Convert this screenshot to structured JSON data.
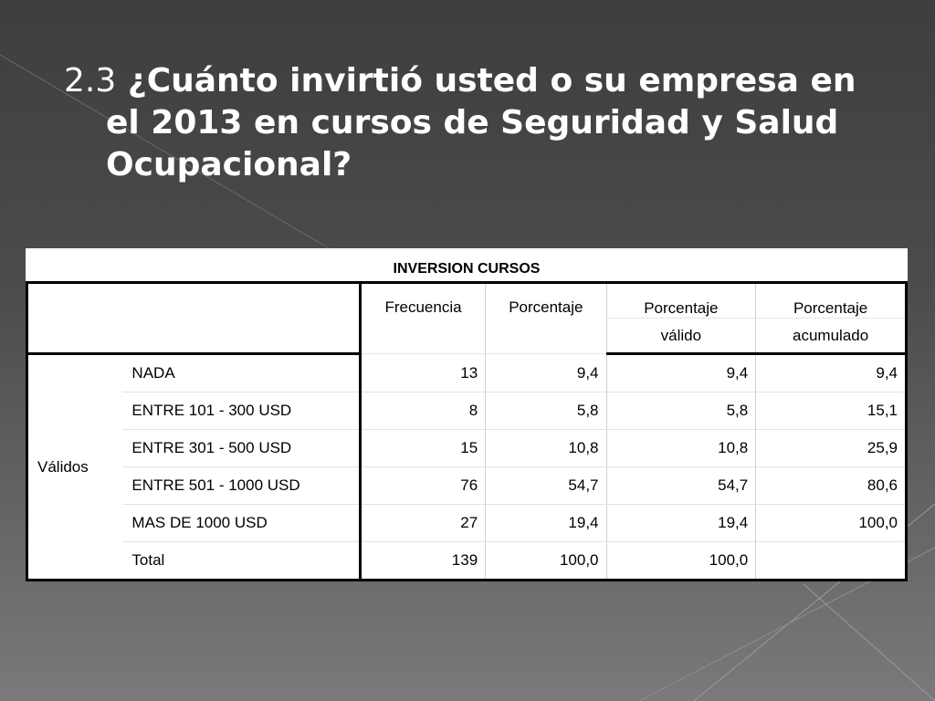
{
  "slide": {
    "title_number": "2.3",
    "title_lines": [
      "¿Cuánto invirtió usted o su empresa en",
      "el 2013 en cursos de Seguridad y Salud",
      "Ocupacional?"
    ]
  },
  "table": {
    "caption": "INVERSION CURSOS",
    "headers": {
      "frecuencia": "Frecuencia",
      "porcentaje": "Porcentaje",
      "valido_1": "Porcentaje",
      "valido_2": "válido",
      "acumulado_1": "Porcentaje",
      "acumulado_2": "acumulado"
    },
    "group_label": "Válidos",
    "rows": [
      {
        "label": "NADA",
        "frecuencia": "13",
        "porcentaje": "9,4",
        "valido": "9,4",
        "acumulado": "9,4"
      },
      {
        "label": "ENTRE 101 - 300 USD",
        "frecuencia": "8",
        "porcentaje": "5,8",
        "valido": "5,8",
        "acumulado": "15,1"
      },
      {
        "label": "ENTRE 301 - 500 USD",
        "frecuencia": "15",
        "porcentaje": "10,8",
        "valido": "10,8",
        "acumulado": "25,9"
      },
      {
        "label": "ENTRE 501 - 1000 USD",
        "frecuencia": "76",
        "porcentaje": "54,7",
        "valido": "54,7",
        "acumulado": "80,6"
      },
      {
        "label": "MAS DE 1000 USD",
        "frecuencia": "27",
        "porcentaje": "19,4",
        "valido": "19,4",
        "acumulado": "100,0"
      },
      {
        "label": "Total",
        "frecuencia": "139",
        "porcentaje": "100,0",
        "valido": "100,0",
        "acumulado": ""
      }
    ]
  }
}
